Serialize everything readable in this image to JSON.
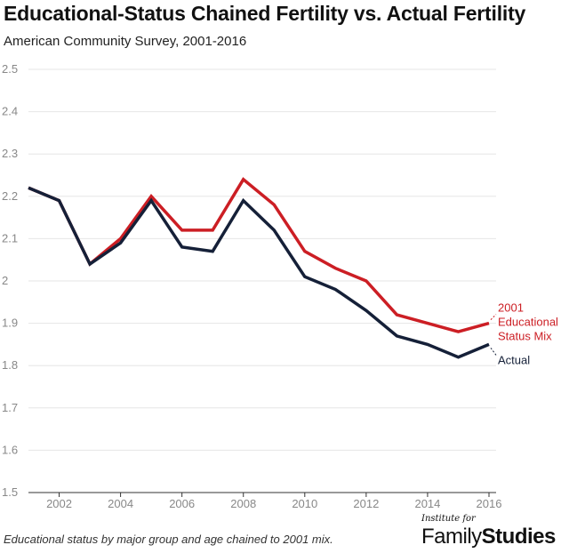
{
  "chart_data": {
    "type": "line",
    "title": "Educational-Status Chained Fertility vs. Actual Fertility",
    "subtitle": "American Community Survey, 2001-2016",
    "x": [
      2001,
      2002,
      2003,
      2004,
      2005,
      2006,
      2007,
      2008,
      2009,
      2010,
      2011,
      2012,
      2013,
      2014,
      2015,
      2016
    ],
    "xticks": [
      "2002",
      "2004",
      "2006",
      "2008",
      "2010",
      "2012",
      "2014",
      "2016"
    ],
    "yticks": [
      "2.5",
      "2.4",
      "2.3",
      "2.2",
      "2.1",
      "2",
      "1.9",
      "1.8",
      "1.7",
      "1.6",
      "1.5"
    ],
    "ylim": [
      1.5,
      2.5
    ],
    "xlim": [
      2001,
      2016
    ],
    "grid": true,
    "series": [
      {
        "name_lines": [
          "2001",
          "Educational",
          "Status Mix"
        ],
        "color": "#cc1e24",
        "values": [
          2.22,
          2.19,
          2.04,
          2.1,
          2.2,
          2.12,
          2.12,
          2.24,
          2.18,
          2.07,
          2.03,
          2.0,
          1.92,
          1.9,
          1.88,
          1.9
        ]
      },
      {
        "name_lines": [
          "Actual"
        ],
        "color": "#152038",
        "values": [
          2.22,
          2.19,
          2.04,
          2.09,
          2.19,
          2.08,
          2.07,
          2.19,
          2.12,
          2.01,
          1.98,
          1.93,
          1.87,
          1.85,
          1.82,
          1.85
        ]
      }
    ]
  },
  "footnote": "Educational status by major group and age chained to 2001 mix.",
  "brand": {
    "small": "Institute for",
    "family": "Family",
    "studies": "Studies"
  }
}
